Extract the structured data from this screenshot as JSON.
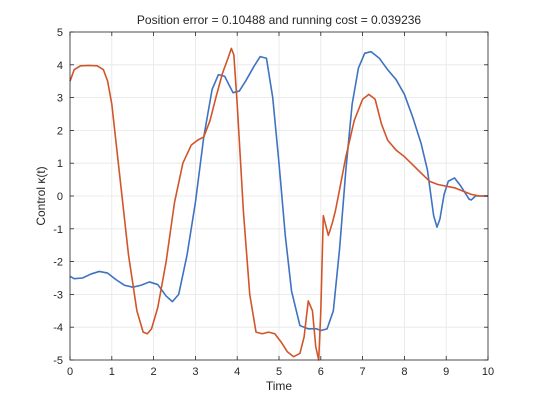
{
  "colors": {
    "series_1": "#3d73c2",
    "series_2": "#d2552a",
    "axes": "#262626",
    "grid": "#e6e6e6",
    "background": "#ffffff"
  },
  "chart_data": {
    "type": "line",
    "title": "Position error = 0.10488 and running cost = 0.039236",
    "xlabel": "Time",
    "ylabel": "Control  κ(t)",
    "xlim": [
      0,
      10
    ],
    "ylim": [
      -5,
      5
    ],
    "xticks": [
      0,
      1,
      2,
      3,
      4,
      5,
      6,
      7,
      8,
      9,
      10
    ],
    "xtick_labels": [
      "0",
      "1",
      "2",
      "3",
      "4",
      "5",
      "6",
      "7",
      "8",
      "9",
      "10"
    ],
    "yticks": [
      -5,
      -4,
      -3,
      -2,
      -1,
      0,
      1,
      2,
      3,
      4,
      5
    ],
    "ytick_labels": [
      "-5",
      "-4",
      "-3",
      "-2",
      "-1",
      "0",
      "1",
      "2",
      "3",
      "4",
      "5"
    ],
    "grid": true,
    "box": true,
    "series": [
      {
        "color": "#3d73c2",
        "x": [
          0,
          0.1,
          0.3,
          0.5,
          0.7,
          0.9,
          1.1,
          1.3,
          1.5,
          1.7,
          1.9,
          2.1,
          2.3,
          2.45,
          2.6,
          2.8,
          3.0,
          3.2,
          3.4,
          3.55,
          3.7,
          3.8,
          3.9,
          4.05,
          4.2,
          4.4,
          4.55,
          4.7,
          4.85,
          5.0,
          5.15,
          5.3,
          5.5,
          5.7,
          5.9,
          6.0,
          6.15,
          6.3,
          6.45,
          6.6,
          6.75,
          6.9,
          7.05,
          7.2,
          7.4,
          7.6,
          7.8,
          8.0,
          8.2,
          8.4,
          8.55,
          8.7,
          8.78,
          8.85,
          8.95,
          9.05,
          9.2,
          9.35,
          9.45,
          9.55,
          9.6,
          9.7,
          9.85,
          10.0
        ],
        "y": [
          -2.45,
          -2.52,
          -2.5,
          -2.38,
          -2.3,
          -2.35,
          -2.55,
          -2.72,
          -2.78,
          -2.72,
          -2.62,
          -2.7,
          -3.05,
          -3.22,
          -3.0,
          -1.8,
          -0.2,
          1.8,
          3.25,
          3.7,
          3.65,
          3.4,
          3.15,
          3.2,
          3.5,
          3.95,
          4.25,
          4.2,
          3.0,
          1.0,
          -1.2,
          -2.9,
          -3.95,
          -4.05,
          -4.05,
          -4.1,
          -4.05,
          -3.5,
          -1.6,
          0.8,
          2.8,
          3.9,
          4.35,
          4.4,
          4.2,
          3.85,
          3.55,
          3.1,
          2.4,
          1.6,
          0.8,
          -0.6,
          -0.95,
          -0.7,
          0.05,
          0.45,
          0.55,
          0.3,
          0.1,
          -0.1,
          -0.12,
          0.0,
          0.0,
          0.0
        ]
      },
      {
        "color": "#d2552a",
        "x": [
          0,
          0.1,
          0.25,
          0.45,
          0.65,
          0.8,
          0.9,
          1.0,
          1.2,
          1.4,
          1.6,
          1.75,
          1.85,
          1.95,
          2.1,
          2.3,
          2.5,
          2.7,
          2.9,
          3.05,
          3.2,
          3.35,
          3.5,
          3.65,
          3.78,
          3.86,
          3.92,
          4.0,
          4.15,
          4.3,
          4.45,
          4.6,
          4.75,
          4.9,
          5.05,
          5.2,
          5.35,
          5.5,
          5.6,
          5.7,
          5.8,
          5.88,
          5.95,
          6.0,
          6.06,
          6.12,
          6.18,
          6.22,
          6.28,
          6.35,
          6.45,
          6.6,
          6.8,
          7.0,
          7.15,
          7.3,
          7.45,
          7.6,
          7.8,
          8.0,
          8.2,
          8.4,
          8.6,
          8.8,
          9.0,
          9.2,
          9.4,
          9.6,
          9.8,
          10.0
        ],
        "y": [
          3.5,
          3.85,
          3.97,
          3.98,
          3.97,
          3.85,
          3.5,
          2.8,
          0.5,
          -1.8,
          -3.5,
          -4.15,
          -4.2,
          -4.05,
          -3.4,
          -2.0,
          -0.2,
          1.0,
          1.55,
          1.7,
          1.8,
          2.3,
          3.05,
          3.75,
          4.2,
          4.5,
          4.3,
          2.8,
          -0.5,
          -3.0,
          -4.15,
          -4.2,
          -4.15,
          -4.2,
          -4.45,
          -4.75,
          -4.9,
          -4.8,
          -4.3,
          -3.2,
          -3.5,
          -4.6,
          -5.0,
          -3.5,
          -0.6,
          -0.9,
          -1.2,
          -1.05,
          -0.8,
          -0.45,
          0.2,
          1.2,
          2.3,
          2.95,
          3.1,
          2.95,
          2.2,
          1.7,
          1.4,
          1.2,
          0.95,
          0.7,
          0.45,
          0.35,
          0.3,
          0.25,
          0.15,
          0.05,
          0.0,
          0.0
        ]
      }
    ]
  }
}
